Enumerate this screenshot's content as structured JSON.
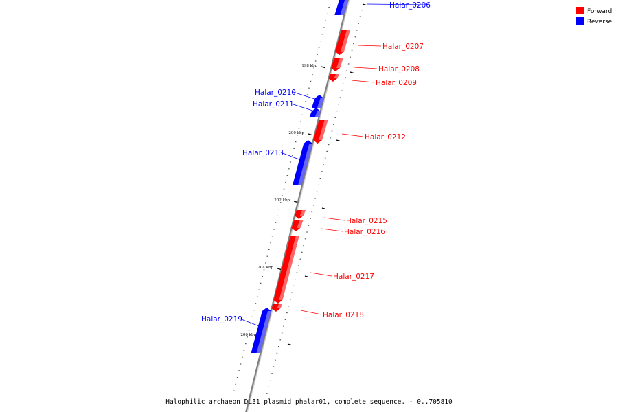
{
  "colors": {
    "forward": "#ff0000",
    "reverse": "#0000ff",
    "backbone": "#808080"
  },
  "legend": [
    {
      "label": "Forward",
      "color": "#ff0000"
    },
    {
      "label": "Reverse",
      "color": "#0000ff"
    }
  ],
  "caption": "Halophilic archaeon DL31 plasmid phalar01, complete sequence. - 0..705810",
  "ticks": [
    {
      "label": "198 kbp"
    },
    {
      "label": "200 kbp"
    },
    {
      "label": "202 kbp"
    },
    {
      "label": "204 kbp"
    },
    {
      "label": "206 kbp"
    }
  ],
  "genes": [
    {
      "label": "Halar_0206",
      "strand": "reverse"
    },
    {
      "label": "Halar_0207",
      "strand": "forward"
    },
    {
      "label": "Halar_0208",
      "strand": "forward"
    },
    {
      "label": "Halar_0209",
      "strand": "forward"
    },
    {
      "label": "Halar_0210",
      "strand": "reverse"
    },
    {
      "label": "Halar_0211",
      "strand": "reverse"
    },
    {
      "label": "Halar_0212",
      "strand": "forward"
    },
    {
      "label": "Halar_0213",
      "strand": "reverse"
    },
    {
      "label": "Halar_0215",
      "strand": "forward"
    },
    {
      "label": "Halar_0216",
      "strand": "forward"
    },
    {
      "label": "Halar_0217",
      "strand": "forward"
    },
    {
      "label": "Halar_0218",
      "strand": "forward"
    },
    {
      "label": "Halar_0219",
      "strand": "reverse"
    }
  ]
}
